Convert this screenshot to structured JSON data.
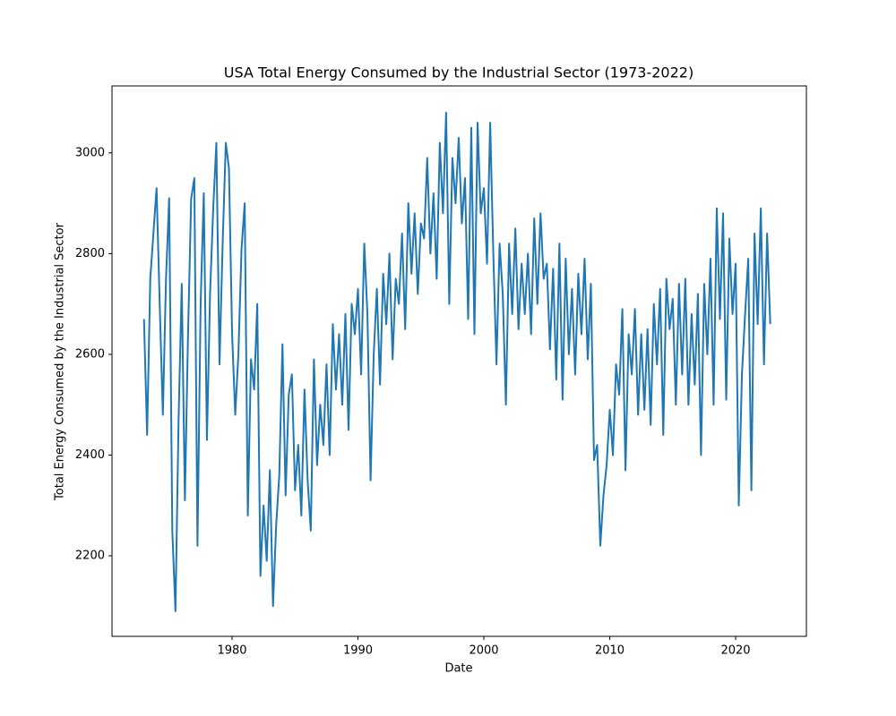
{
  "chart_data": {
    "type": "line",
    "title": "USA Total Energy Consumed by the Industrial Sector (1973-2022)",
    "x_label": "Date",
    "y_label": "Total Energy Consumed by the Industrial Sector",
    "color": "#1f77b4",
    "grid": false,
    "xlim": [
      1970.46,
      2025.62
    ],
    "xticks": [
      1980,
      1990,
      2000,
      2010,
      2020
    ],
    "ylim": [
      2040,
      3133
    ],
    "yticks": [
      2200,
      2400,
      2600,
      2800,
      3000
    ],
    "x": [
      1973,
      1973.25,
      1973.5,
      1973.75,
      1974,
      1974.25,
      1974.5,
      1974.75,
      1975,
      1975.25,
      1975.5,
      1975.75,
      1976,
      1976.25,
      1976.5,
      1976.75,
      1977,
      1977.25,
      1977.5,
      1977.75,
      1978,
      1978.25,
      1978.5,
      1978.75,
      1979,
      1979.25,
      1979.5,
      1979.75,
      1980,
      1980.25,
      1980.5,
      1980.75,
      1981,
      1981.25,
      1981.5,
      1981.75,
      1982,
      1982.25,
      1982.5,
      1982.75,
      1983,
      1983.25,
      1983.5,
      1983.75,
      1984,
      1984.25,
      1984.5,
      1984.75,
      1985,
      1985.25,
      1985.5,
      1985.75,
      1986,
      1986.25,
      1986.5,
      1986.75,
      1987,
      1987.25,
      1987.5,
      1987.75,
      1988,
      1988.25,
      1988.5,
      1988.75,
      1989,
      1989.25,
      1989.5,
      1989.75,
      1990,
      1990.25,
      1990.5,
      1990.75,
      1991,
      1991.25,
      1991.5,
      1991.75,
      1992,
      1992.25,
      1992.5,
      1992.75,
      1993,
      1993.25,
      1993.5,
      1993.75,
      1994,
      1994.25,
      1994.5,
      1994.75,
      1995,
      1995.25,
      1995.5,
      1995.75,
      1996,
      1996.25,
      1996.5,
      1996.75,
      1997,
      1997.25,
      1997.5,
      1997.75,
      1998,
      1998.25,
      1998.5,
      1998.75,
      1999,
      1999.25,
      1999.5,
      1999.75,
      2000,
      2000.25,
      2000.5,
      2000.75,
      2001,
      2001.25,
      2001.5,
      2001.75,
      2002,
      2002.25,
      2002.5,
      2002.75,
      2003,
      2003.25,
      2003.5,
      2003.75,
      2004,
      2004.25,
      2004.5,
      2004.75,
      2005,
      2005.25,
      2005.5,
      2005.75,
      2006,
      2006.25,
      2006.5,
      2006.75,
      2007,
      2007.25,
      2007.5,
      2007.75,
      2008,
      2008.25,
      2008.5,
      2008.75,
      2009,
      2009.25,
      2009.5,
      2009.75,
      2010,
      2010.25,
      2010.5,
      2010.75,
      2011,
      2011.25,
      2011.5,
      2011.75,
      2012,
      2012.25,
      2012.5,
      2012.75,
      2013,
      2013.25,
      2013.5,
      2013.75,
      2014,
      2014.25,
      2014.5,
      2014.75,
      2015,
      2015.25,
      2015.5,
      2015.75,
      2016,
      2016.25,
      2016.5,
      2016.75,
      2017,
      2017.25,
      2017.5,
      2017.75,
      2018,
      2018.25,
      2018.5,
      2018.75,
      2019,
      2019.25,
      2019.5,
      2019.75,
      2020,
      2020.25,
      2020.5,
      2020.75,
      2021,
      2021.25,
      2021.5,
      2021.75,
      2022,
      2022.25,
      2022.5,
      2022.75
    ],
    "values": [
      2670,
      2440,
      2750,
      2840,
      2930,
      2700,
      2480,
      2750,
      2910,
      2250,
      2090,
      2470,
      2740,
      2310,
      2640,
      2910,
      2950,
      2220,
      2700,
      2920,
      2430,
      2720,
      2890,
      3020,
      2580,
      2820,
      3020,
      2970,
      2640,
      2480,
      2600,
      2810,
      2900,
      2280,
      2590,
      2530,
      2700,
      2160,
      2300,
      2190,
      2370,
      2100,
      2260,
      2360,
      2620,
      2320,
      2520,
      2560,
      2330,
      2420,
      2280,
      2530,
      2350,
      2250,
      2590,
      2380,
      2500,
      2420,
      2580,
      2400,
      2660,
      2530,
      2640,
      2500,
      2680,
      2450,
      2700,
      2640,
      2730,
      2560,
      2820,
      2680,
      2350,
      2600,
      2730,
      2540,
      2760,
      2660,
      2800,
      2590,
      2750,
      2700,
      2840,
      2650,
      2900,
      2760,
      2880,
      2720,
      2860,
      2830,
      2990,
      2800,
      2920,
      2750,
      3020,
      2880,
      3080,
      2700,
      2990,
      2900,
      3030,
      2860,
      2950,
      2670,
      3050,
      2640,
      3060,
      2880,
      2930,
      2780,
      3060,
      2800,
      2580,
      2820,
      2720,
      2500,
      2820,
      2680,
      2850,
      2650,
      2780,
      2680,
      2800,
      2640,
      2870,
      2700,
      2880,
      2750,
      2780,
      2610,
      2770,
      2550,
      2820,
      2510,
      2790,
      2600,
      2730,
      2560,
      2760,
      2640,
      2790,
      2590,
      2740,
      2390,
      2420,
      2220,
      2320,
      2380,
      2490,
      2400,
      2580,
      2520,
      2690,
      2370,
      2640,
      2560,
      2690,
      2480,
      2640,
      2490,
      2650,
      2460,
      2700,
      2580,
      2730,
      2440,
      2750,
      2650,
      2710,
      2500,
      2740,
      2560,
      2750,
      2500,
      2680,
      2540,
      2720,
      2400,
      2740,
      2600,
      2790,
      2500,
      2890,
      2670,
      2880,
      2510,
      2830,
      2680,
      2780,
      2300,
      2560,
      2680,
      2790,
      2330,
      2840,
      2660,
      2890,
      2580,
      2840,
      2660
    ]
  }
}
